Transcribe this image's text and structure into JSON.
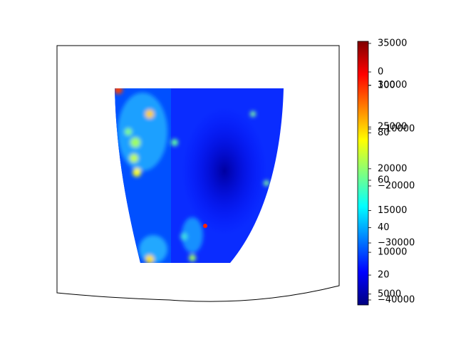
{
  "chart_data": {
    "type": "heatmap",
    "colormap": [
      "#00007f",
      "#0000ff",
      "#007fff",
      "#00ffff",
      "#7fff7f",
      "#ffff00",
      "#ff7f00",
      "#ff0000",
      "#7f0000"
    ],
    "colorbar": {
      "axes": [
        {
          "lim": [
            3700,
            35250
          ],
          "ticks": [
            5000,
            10000,
            15000,
            20000,
            25000,
            30000,
            35000
          ]
        },
        {
          "lim": [
            7.4,
            118.6
          ],
          "ticks": [
            20,
            40,
            60,
            80,
            100
          ]
        },
        {
          "lim": [
            -40875,
            5375
          ],
          "ticks": [
            {
              "value": -40000,
              "label": "−40000"
            },
            {
              "value": -30000,
              "label": "−30000"
            },
            {
              "value": -20000,
              "label": "−20000"
            },
            {
              "value": -10000,
              "label": "−10000"
            },
            0
          ]
        }
      ]
    }
  }
}
